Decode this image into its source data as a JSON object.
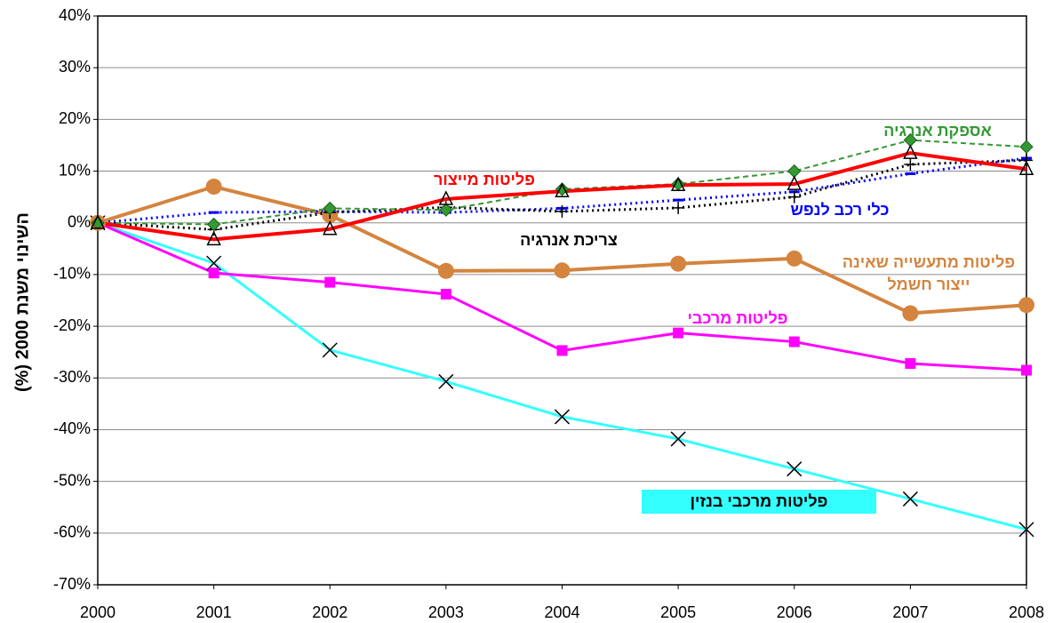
{
  "chart_data": {
    "type": "line",
    "y_label": "השינוי משנת 2000 (%)",
    "x": [
      2000,
      2001,
      2002,
      2003,
      2004,
      2005,
      2006,
      2007,
      2008
    ],
    "xlim": [
      2000,
      2008
    ],
    "xticks": [
      2000,
      2001,
      2002,
      2003,
      2004,
      2005,
      2006,
      2007,
      2008
    ],
    "ylim": [
      -70,
      40
    ],
    "yticks": [
      {
        "value": -70,
        "label": "-70%"
      },
      {
        "value": -60,
        "label": "-60%"
      },
      {
        "value": -50,
        "label": "-50%"
      },
      {
        "value": -40,
        "label": "-40%"
      },
      {
        "value": -30,
        "label": "-30%"
      },
      {
        "value": -20,
        "label": "-20%"
      },
      {
        "value": -10,
        "label": "-10%"
      },
      {
        "value": 0,
        "label": "0%"
      },
      {
        "value": 10,
        "label": "10%"
      },
      {
        "value": 20,
        "label": "20%"
      },
      {
        "value": 30,
        "label": "30%"
      },
      {
        "value": 40,
        "label": "40%"
      }
    ],
    "grid": true,
    "series": [
      {
        "name": "פליטות מייצור",
        "color": "#ff0000",
        "marker": "triangle",
        "line_style": "solid",
        "values": [
          0,
          -3.2,
          -1.2,
          4.6,
          6.1,
          7.3,
          7.5,
          13.5,
          10.4
        ]
      },
      {
        "name": "אספקת אנרגיה",
        "color": "#339933",
        "marker": "diamond",
        "line_style": "dashed",
        "values": [
          0,
          -0.3,
          2.8,
          2.5,
          6.5,
          7.5,
          10,
          16,
          14.7
        ]
      },
      {
        "name": "צריכת אנרגיה",
        "color": "#000000",
        "marker": "plus",
        "line_style": "dotted",
        "values": [
          0,
          -1.3,
          2,
          3,
          2.2,
          2.9,
          5,
          11.3,
          12.1
        ]
      },
      {
        "name": "כלי רכב לנפש",
        "color": "#0000ff",
        "marker": "dash",
        "line_style": "dotted",
        "values": [
          0,
          2,
          2.2,
          2,
          2.8,
          4.4,
          6,
          9.5,
          12.5
        ]
      },
      {
        "name": "פליטות מתעשייה שאינה ייצור חשמל",
        "color": "#d4843e",
        "marker": "circle",
        "line_style": "solid",
        "values": [
          0,
          7,
          1.5,
          -9.3,
          -9.2,
          -7.9,
          -6.9,
          -17.5,
          -15.9
        ]
      },
      {
        "name": "פליטות מרכבי",
        "color": "#ff00ff",
        "marker": "square",
        "line_style": "solid",
        "values": [
          0,
          -9.7,
          -11.5,
          -13.8,
          -24.7,
          -21.3,
          -23,
          -27.2,
          -28.5
        ]
      },
      {
        "name": "פליטות מרכבי בנזין",
        "color": "#33ffff",
        "marker": "x",
        "line_style": "solid",
        "values": [
          0,
          -7.8,
          -24.6,
          -30.7,
          -37.5,
          -41.8,
          -47.6,
          -53.4,
          -59.3
        ]
      }
    ]
  }
}
